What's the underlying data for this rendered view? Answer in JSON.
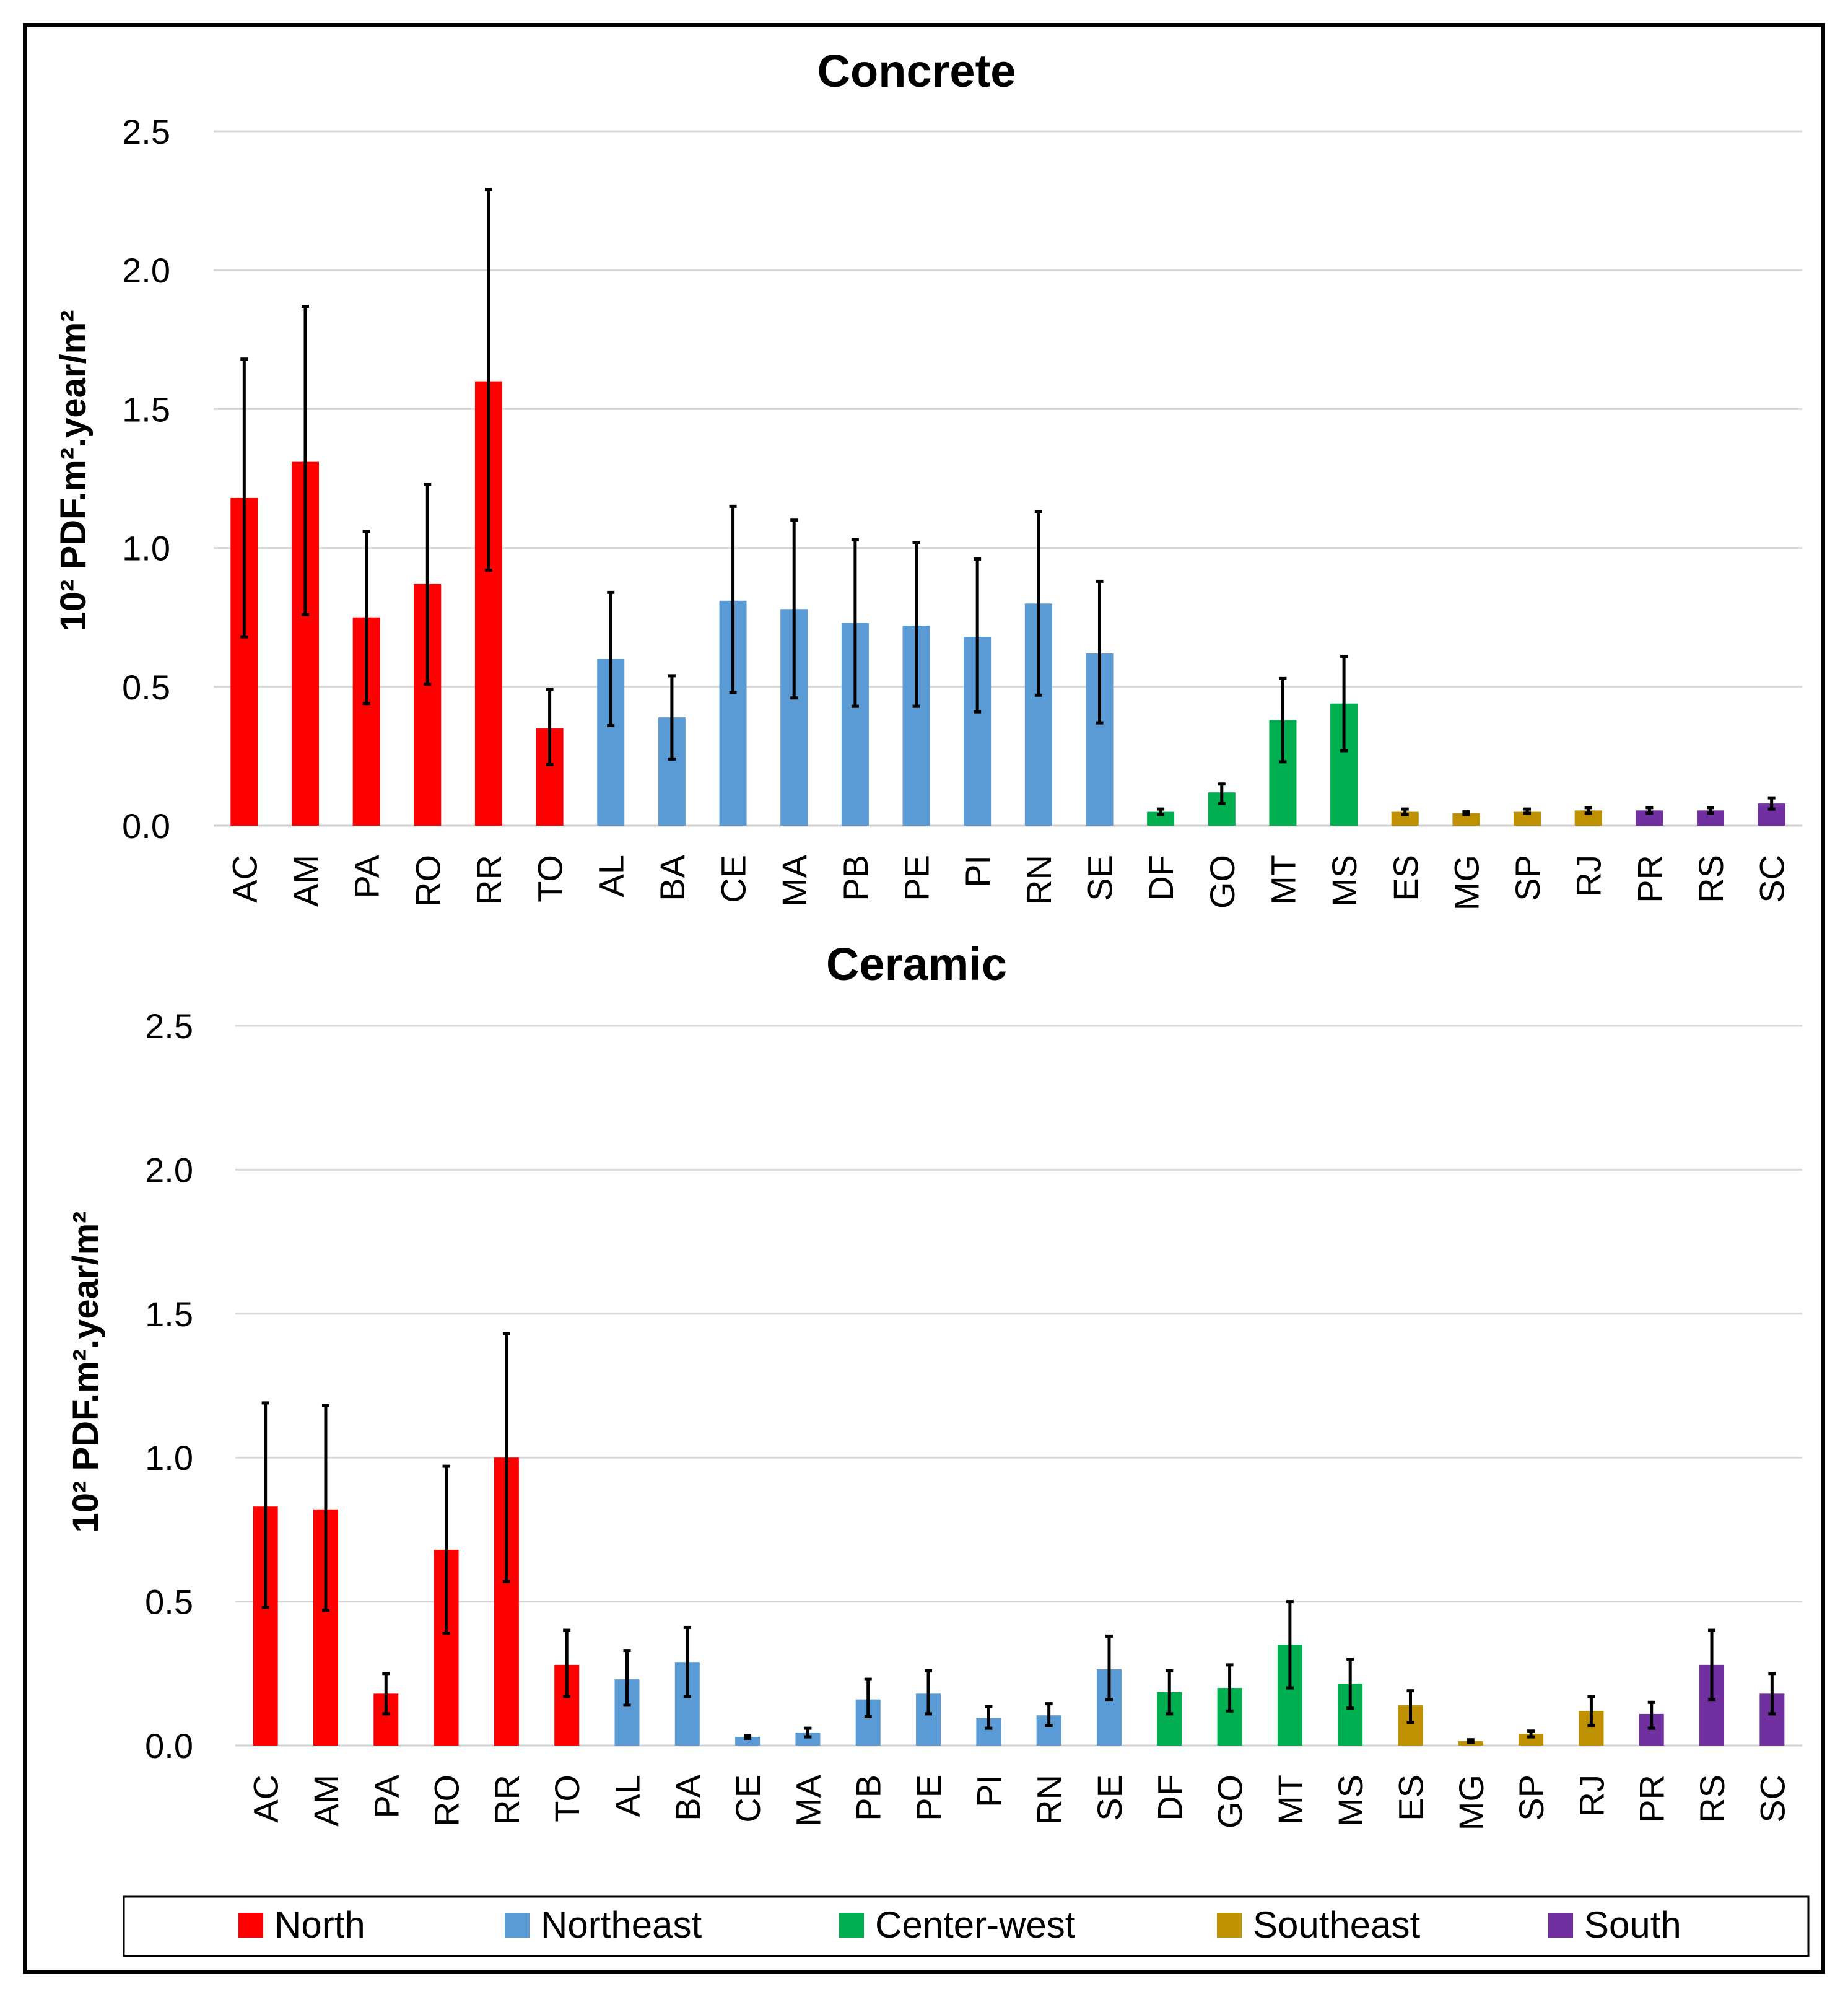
{
  "chart_data": [
    {
      "type": "bar",
      "title": "Concrete",
      "ylabel": "10² PDF.m².year/m²",
      "xlabel": "",
      "ylim": [
        0,
        2.5
      ],
      "yticks": [
        "0.0",
        "0.5",
        "1.0",
        "1.5",
        "2.0",
        "2.5"
      ],
      "grid": true,
      "categories": [
        "AC",
        "AM",
        "PA",
        "RO",
        "RR",
        "TO",
        "AL",
        "BA",
        "CE",
        "MA",
        "PB",
        "PE",
        "PI",
        "RN",
        "SE",
        "DF",
        "GO",
        "MT",
        "MS",
        "ES",
        "MG",
        "SP",
        "RJ",
        "PR",
        "RS",
        "SC"
      ],
      "regions": [
        "North",
        "North",
        "North",
        "North",
        "North",
        "North",
        "Northeast",
        "Northeast",
        "Northeast",
        "Northeast",
        "Northeast",
        "Northeast",
        "Northeast",
        "Northeast",
        "Northeast",
        "Center-west",
        "Center-west",
        "Center-west",
        "Center-west",
        "Southeast",
        "Southeast",
        "Southeast",
        "Southeast",
        "South",
        "South",
        "South"
      ],
      "values": [
        1.18,
        1.31,
        0.75,
        0.87,
        1.6,
        0.35,
        0.6,
        0.39,
        0.81,
        0.78,
        0.73,
        0.72,
        0.68,
        0.8,
        0.62,
        0.05,
        0.12,
        0.38,
        0.44,
        0.05,
        0.045,
        0.05,
        0.055,
        0.055,
        0.055,
        0.08
      ],
      "error_low": [
        0.68,
        0.76,
        0.44,
        0.51,
        0.92,
        0.22,
        0.36,
        0.24,
        0.48,
        0.46,
        0.43,
        0.43,
        0.41,
        0.47,
        0.37,
        0.04,
        0.08,
        0.23,
        0.27,
        0.04,
        0.04,
        0.045,
        0.045,
        0.045,
        0.045,
        0.06
      ],
      "error_high": [
        1.68,
        1.87,
        1.06,
        1.23,
        2.29,
        0.49,
        0.84,
        0.54,
        1.15,
        1.1,
        1.03,
        1.02,
        0.96,
        1.13,
        0.88,
        0.06,
        0.15,
        0.53,
        0.61,
        0.06,
        0.05,
        0.06,
        0.065,
        0.065,
        0.065,
        0.1
      ]
    },
    {
      "type": "bar",
      "title": "Ceramic",
      "ylabel": "10² PDF.m².year/m²",
      "xlabel": "",
      "ylim": [
        0,
        2.5
      ],
      "yticks": [
        "0.0",
        "0.5",
        "1.0",
        "1.5",
        "2.0",
        "2.5"
      ],
      "grid": true,
      "categories": [
        "AC",
        "AM",
        "PA",
        "RO",
        "RR",
        "TO",
        "AL",
        "BA",
        "CE",
        "MA",
        "PB",
        "PE",
        "PI",
        "RN",
        "SE",
        "DF",
        "GO",
        "MT",
        "MS",
        "ES",
        "MG",
        "SP",
        "RJ",
        "PR",
        "RS",
        "SC"
      ],
      "regions": [
        "North",
        "North",
        "North",
        "North",
        "North",
        "North",
        "Northeast",
        "Northeast",
        "Northeast",
        "Northeast",
        "Northeast",
        "Northeast",
        "Northeast",
        "Northeast",
        "Northeast",
        "Center-west",
        "Center-west",
        "Center-west",
        "Center-west",
        "Southeast",
        "Southeast",
        "Southeast",
        "Southeast",
        "South",
        "South",
        "South"
      ],
      "values": [
        0.83,
        0.82,
        0.18,
        0.68,
        1.0,
        0.28,
        0.23,
        0.29,
        0.03,
        0.045,
        0.16,
        0.18,
        0.095,
        0.105,
        0.265,
        0.185,
        0.2,
        0.35,
        0.215,
        0.14,
        0.015,
        0.04,
        0.12,
        0.11,
        0.28,
        0.18
      ],
      "error_low": [
        0.48,
        0.47,
        0.11,
        0.39,
        0.57,
        0.17,
        0.14,
        0.17,
        0.025,
        0.03,
        0.1,
        0.11,
        0.06,
        0.07,
        0.16,
        0.11,
        0.12,
        0.2,
        0.13,
        0.08,
        0.01,
        0.03,
        0.07,
        0.06,
        0.16,
        0.11
      ],
      "error_high": [
        1.19,
        1.18,
        0.25,
        0.97,
        1.43,
        0.4,
        0.33,
        0.41,
        0.035,
        0.06,
        0.23,
        0.26,
        0.135,
        0.145,
        0.38,
        0.26,
        0.28,
        0.5,
        0.3,
        0.19,
        0.02,
        0.05,
        0.17,
        0.15,
        0.4,
        0.25
      ]
    }
  ],
  "legend": {
    "items": [
      {
        "label": "North",
        "color": "#ff0000"
      },
      {
        "label": "Northeast",
        "color": "#5b9bd5"
      },
      {
        "label": "Center-west",
        "color": "#00b050"
      },
      {
        "label": "Southeast",
        "color": "#bf9000"
      },
      {
        "label": "South",
        "color": "#7030a0"
      }
    ]
  }
}
